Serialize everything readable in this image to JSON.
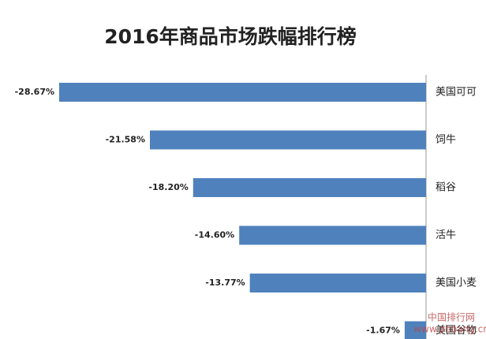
{
  "chart_data": {
    "type": "bar",
    "orientation": "horizontal",
    "title": "2016年商品市场跌幅排行榜",
    "categories": [
      "美国可可",
      "饲牛",
      "稻谷",
      "活牛",
      "美国小麦",
      "美国谷物"
    ],
    "values": [
      -28.67,
      -21.58,
      -18.2,
      -14.6,
      -13.77,
      -1.67
    ],
    "value_labels": [
      "-28.67%",
      "-21.58%",
      "-18.20%",
      "-14.60%",
      "-13.77%",
      "-1.67%"
    ],
    "color": "#4f81bd"
  },
  "watermark": {
    "name": "中国排行网",
    "url": "www.phbang.cn"
  }
}
